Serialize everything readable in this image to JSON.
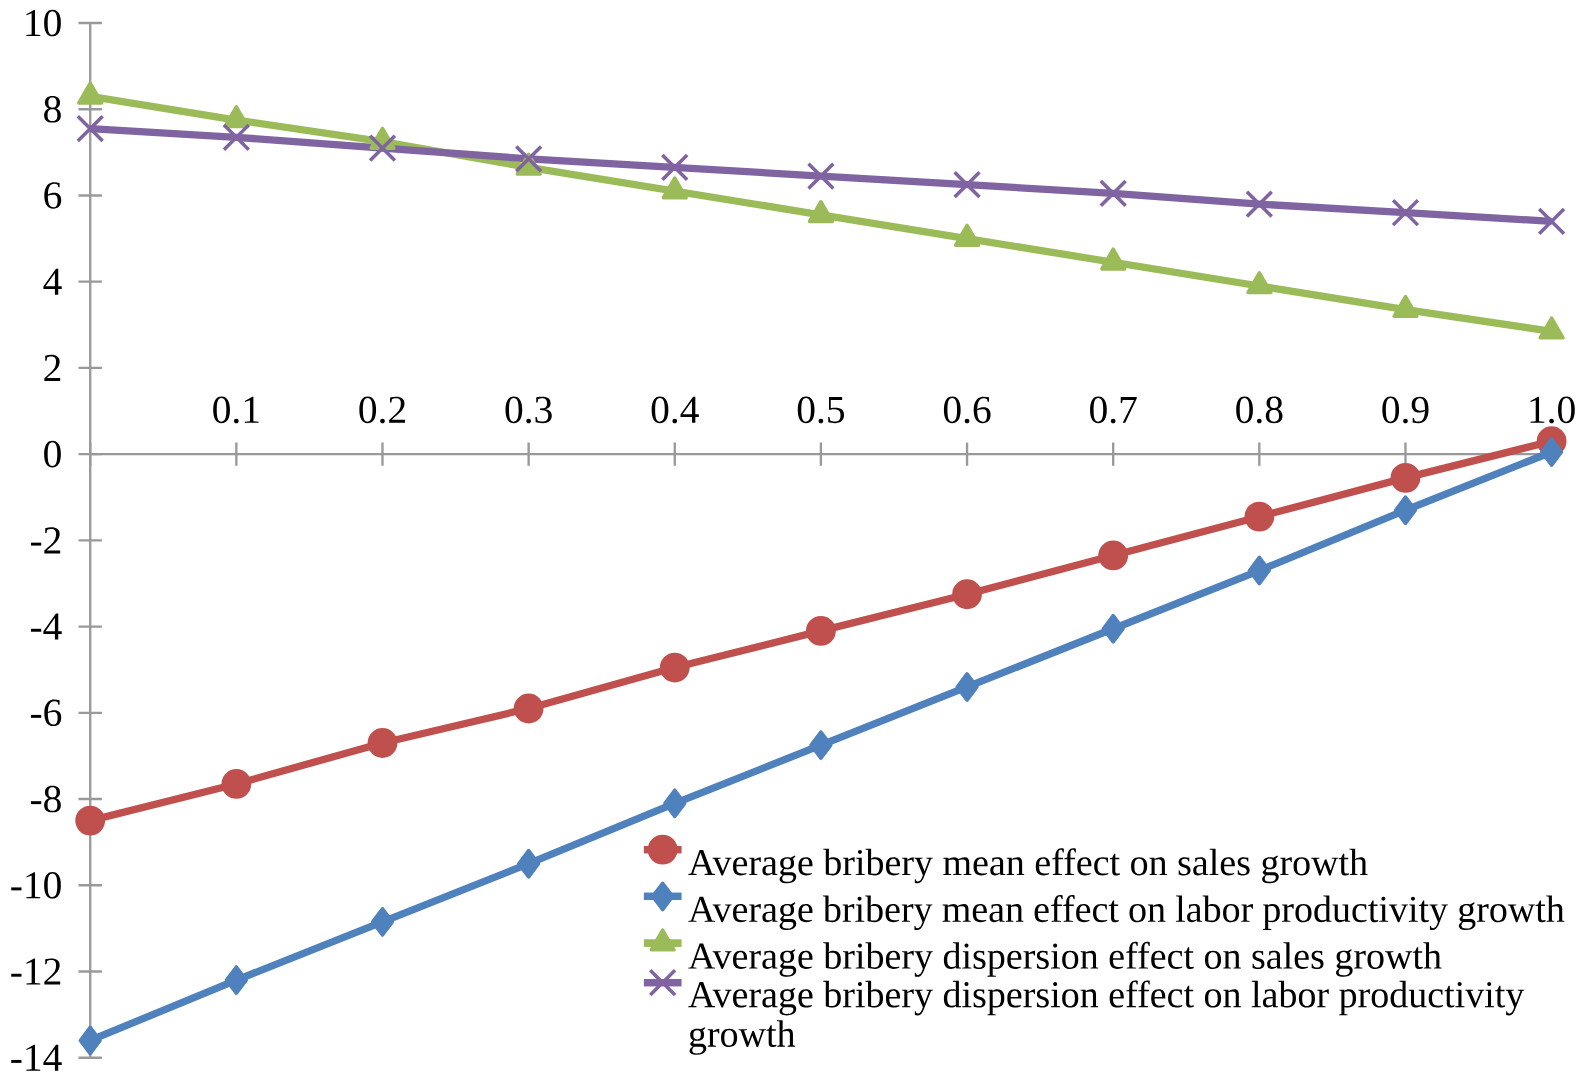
{
  "chart_data": {
    "type": "line",
    "x": [
      0,
      0.1,
      0.2,
      0.3,
      0.4,
      0.5,
      0.6,
      0.7,
      0.8,
      0.9,
      1.0
    ],
    "xlim": [
      0,
      1
    ],
    "xticks": [
      {
        "value": 0,
        "label": null
      },
      0.1,
      0.2,
      0.3,
      0.4,
      0.5,
      0.6,
      0.7,
      0.8,
      0.9,
      {
        "value": 1.0,
        "label": "1.0"
      }
    ],
    "ylim": [
      -14,
      10
    ],
    "yticks": [
      -14,
      -12,
      -10,
      -8,
      -6,
      -4,
      -2,
      0,
      2,
      4,
      6,
      8,
      10
    ],
    "grid": false,
    "legend": "bottom right",
    "line_style": "solid",
    "series": [
      {
        "name": "Average bribery mean effect on sales growth",
        "color": "#c0504d",
        "marker": "circle",
        "values": [
          -8.5,
          -7.65,
          -6.7,
          -5.9,
          -4.95,
          -4.1,
          -3.25,
          -2.35,
          -1.45,
          -0.55,
          0.3
        ]
      },
      {
        "name": "Average bribery mean effect on labor productivity growth",
        "color": "#4f81bd",
        "marker": "diamond",
        "values": [
          -13.6,
          -12.2,
          -10.85,
          -9.5,
          -8.1,
          -6.75,
          -5.4,
          -4.05,
          -2.7,
          -1.3,
          0.05
        ]
      },
      {
        "name": "Average bribery dispersion effect on sales growth",
        "color": "#9bbb59",
        "marker": "triangle",
        "values": [
          8.3,
          7.75,
          7.25,
          6.65,
          6.1,
          5.55,
          5.0,
          4.45,
          3.9,
          3.35,
          2.85
        ]
      },
      {
        "name": "Average bribery dispersion effect on labor productivity growth",
        "color": "#8064a2",
        "marker": "cross",
        "values": [
          7.55,
          7.35,
          7.1,
          6.85,
          6.65,
          6.45,
          6.25,
          6.05,
          5.8,
          5.6,
          5.4
        ]
      }
    ]
  }
}
